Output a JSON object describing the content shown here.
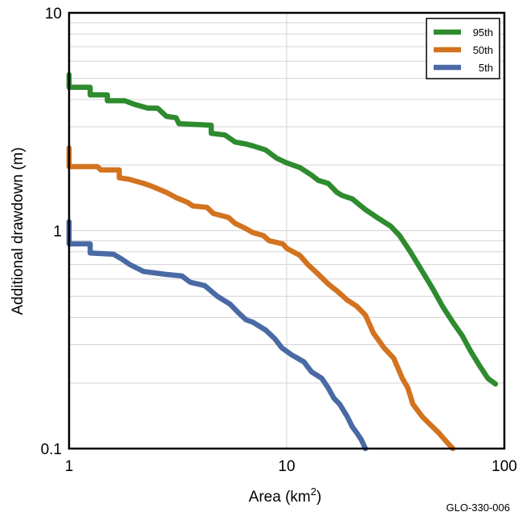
{
  "chart_data": {
    "type": "line",
    "xlabel": "Area (km",
    "xlabel_sup": "2",
    "xlabel_close": ")",
    "ylabel": "Additional drawdown (m)",
    "xscale": "log",
    "yscale": "log",
    "xlim": [
      1,
      100
    ],
    "ylim": [
      0.1,
      10
    ],
    "x_ticks": [
      {
        "value": 1,
        "label": "1"
      },
      {
        "value": 10,
        "label": "10"
      },
      {
        "value": 100,
        "label": "100"
      }
    ],
    "y_ticks": [
      {
        "value": 0.1,
        "label": "0.1"
      },
      {
        "value": 1,
        "label": "1"
      },
      {
        "value": 10,
        "label": "10"
      }
    ],
    "grid": true,
    "legend_position": "top-right",
    "series": [
      {
        "name": "95th",
        "color": "#2e8b2e",
        "points": [
          [
            1.0,
            5.2
          ],
          [
            1.0,
            4.55
          ],
          [
            1.25,
            4.55
          ],
          [
            1.25,
            4.2
          ],
          [
            1.5,
            4.2
          ],
          [
            1.5,
            3.95
          ],
          [
            1.8,
            3.95
          ],
          [
            2.0,
            3.8
          ],
          [
            2.3,
            3.65
          ],
          [
            2.55,
            3.65
          ],
          [
            2.8,
            3.35
          ],
          [
            3.1,
            3.3
          ],
          [
            3.2,
            3.1
          ],
          [
            4.5,
            3.05
          ],
          [
            4.5,
            2.8
          ],
          [
            5.2,
            2.75
          ],
          [
            5.8,
            2.55
          ],
          [
            6.5,
            2.5
          ],
          [
            7.0,
            2.45
          ],
          [
            8.0,
            2.35
          ],
          [
            9.0,
            2.15
          ],
          [
            10.0,
            2.05
          ],
          [
            11.5,
            1.95
          ],
          [
            13.0,
            1.8
          ],
          [
            14.0,
            1.7
          ],
          [
            15.5,
            1.65
          ],
          [
            17.0,
            1.5
          ],
          [
            18.0,
            1.45
          ],
          [
            20.0,
            1.4
          ],
          [
            23.0,
            1.25
          ],
          [
            26.0,
            1.15
          ],
          [
            30.0,
            1.05
          ],
          [
            33.0,
            0.95
          ],
          [
            37.0,
            0.8
          ],
          [
            42.0,
            0.65
          ],
          [
            47.0,
            0.54
          ],
          [
            52.0,
            0.45
          ],
          [
            58.0,
            0.38
          ],
          [
            64.0,
            0.33
          ],
          [
            70.0,
            0.28
          ],
          [
            77.0,
            0.24
          ],
          [
            84.0,
            0.21
          ],
          [
            91.0,
            0.198
          ]
        ]
      },
      {
        "name": "50th",
        "color": "#d2731f",
        "points": [
          [
            1.0,
            2.4
          ],
          [
            1.0,
            1.97
          ],
          [
            1.25,
            1.97
          ],
          [
            1.35,
            1.97
          ],
          [
            1.4,
            1.9
          ],
          [
            1.7,
            1.9
          ],
          [
            1.7,
            1.75
          ],
          [
            1.9,
            1.72
          ],
          [
            2.2,
            1.65
          ],
          [
            2.4,
            1.6
          ],
          [
            2.8,
            1.5
          ],
          [
            3.1,
            1.42
          ],
          [
            3.5,
            1.35
          ],
          [
            3.7,
            1.3
          ],
          [
            4.3,
            1.28
          ],
          [
            4.6,
            1.2
          ],
          [
            5.4,
            1.15
          ],
          [
            5.8,
            1.08
          ],
          [
            6.4,
            1.03
          ],
          [
            7.0,
            0.98
          ],
          [
            7.8,
            0.95
          ],
          [
            8.3,
            0.9
          ],
          [
            9.6,
            0.87
          ],
          [
            10.0,
            0.83
          ],
          [
            11.5,
            0.77
          ],
          [
            12.5,
            0.7
          ],
          [
            14.0,
            0.63
          ],
          [
            15.5,
            0.57
          ],
          [
            17.0,
            0.53
          ],
          [
            19.0,
            0.48
          ],
          [
            21.0,
            0.45
          ],
          [
            23.0,
            0.41
          ],
          [
            25.0,
            0.34
          ],
          [
            28.0,
            0.29
          ],
          [
            31.0,
            0.26
          ],
          [
            34.0,
            0.21
          ],
          [
            36.0,
            0.19
          ],
          [
            38.0,
            0.16
          ],
          [
            42.0,
            0.14
          ],
          [
            46.0,
            0.128
          ],
          [
            50.0,
            0.118
          ],
          [
            54.0,
            0.108
          ],
          [
            58.0,
            0.1
          ]
        ]
      },
      {
        "name": "5th",
        "color": "#4a6aa5",
        "points": [
          [
            1.0,
            1.1
          ],
          [
            1.0,
            0.87
          ],
          [
            1.25,
            0.87
          ],
          [
            1.25,
            0.79
          ],
          [
            1.6,
            0.78
          ],
          [
            1.75,
            0.74
          ],
          [
            1.9,
            0.7
          ],
          [
            2.2,
            0.65
          ],
          [
            2.8,
            0.63
          ],
          [
            3.3,
            0.62
          ],
          [
            3.6,
            0.58
          ],
          [
            4.2,
            0.56
          ],
          [
            4.8,
            0.5
          ],
          [
            5.5,
            0.46
          ],
          [
            6.0,
            0.42
          ],
          [
            6.5,
            0.39
          ],
          [
            7.0,
            0.38
          ],
          [
            8.0,
            0.35
          ],
          [
            8.8,
            0.32
          ],
          [
            9.5,
            0.29
          ],
          [
            10.5,
            0.27
          ],
          [
            12.0,
            0.25
          ],
          [
            13.0,
            0.225
          ],
          [
            14.5,
            0.21
          ],
          [
            15.5,
            0.19
          ],
          [
            16.5,
            0.17
          ],
          [
            17.5,
            0.16
          ],
          [
            19.0,
            0.14
          ],
          [
            20.0,
            0.126
          ],
          [
            21.0,
            0.118
          ],
          [
            22.0,
            0.11
          ],
          [
            23.0,
            0.1
          ]
        ]
      }
    ]
  },
  "figure_id": "GLO-330-006"
}
